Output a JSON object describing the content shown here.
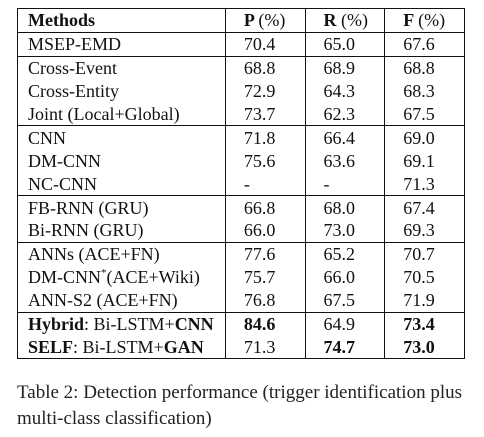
{
  "table": {
    "headers": {
      "methods": "Methods",
      "p": "P",
      "r": "R",
      "f": "F",
      "unit": "(%)"
    },
    "groups": [
      [
        {
          "method": "MSEP-EMD",
          "p": "70.4",
          "r": "65.0",
          "f": "67.6"
        }
      ],
      [
        {
          "method": "Cross-Event",
          "p": "68.8",
          "r": "68.9",
          "f": "68.8"
        },
        {
          "method": "Cross-Entity",
          "p": "72.9",
          "r": "64.3",
          "f": "68.3"
        },
        {
          "method": "Joint (Local+Global)",
          "p": "73.7",
          "r": "62.3",
          "f": "67.5"
        }
      ],
      [
        {
          "method": "CNN",
          "p": "71.8",
          "r": "66.4",
          "f": "69.0"
        },
        {
          "method": "DM-CNN",
          "p": "75.6",
          "r": "63.6",
          "f": "69.1"
        },
        {
          "method": "NC-CNN",
          "p": "-",
          "r": "-",
          "f": "71.3"
        }
      ],
      [
        {
          "method": "FB-RNN (GRU)",
          "p": "66.8",
          "r": "68.0",
          "f": "67.4"
        },
        {
          "method": "Bi-RNN (GRU)",
          "p": "66.0",
          "r": "73.0",
          "f": "69.3"
        }
      ],
      [
        {
          "method": "ANNs (ACE+FN)",
          "p": "77.6",
          "r": "65.2",
          "f": "70.7"
        },
        {
          "method_pre": "DM-CNN",
          "method_sup": "*",
          "method_post": "(ACE+Wiki)",
          "p": "75.7",
          "r": "66.0",
          "f": "70.5"
        },
        {
          "method": "ANN-S2 (ACE+FN)",
          "p": "76.8",
          "r": "67.5",
          "f": "71.9"
        }
      ],
      [
        {
          "method_bold_a": "Hybrid",
          "method_mid": ": Bi-LSTM+",
          "method_bold_b": "CNN",
          "p": "84.6",
          "r": "64.9",
          "f": "73.4"
        },
        {
          "method_bold_a": "SELF",
          "method_mid": ": Bi-LSTM+",
          "method_bold_b": "GAN",
          "p": "71.3",
          "r": "74.7",
          "f": "73.0"
        }
      ]
    ]
  },
  "caption": "Table 2:  Detection performance (trigger identification plus multi-class classification)"
}
